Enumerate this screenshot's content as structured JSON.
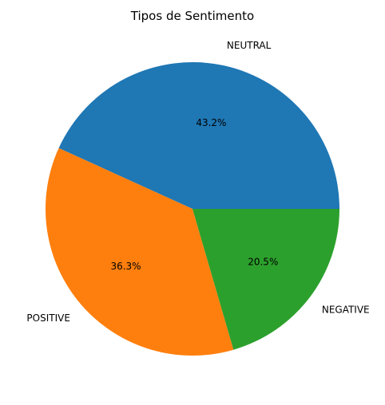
{
  "chart_data": {
    "type": "pie",
    "title": "Tipos de Sentimento",
    "categories": [
      "NEUTRAL",
      "POSITIVE",
      "NEGATIVE"
    ],
    "values": [
      43.2,
      36.3,
      20.5
    ],
    "percent_labels": [
      "43.2%",
      "36.3%",
      "20.5%"
    ],
    "colors": [
      "#1f77b4",
      "#ff7f0e",
      "#2ca02c"
    ],
    "start_angle_deg": 0,
    "direction": "counterclockwise",
    "legend": "none"
  }
}
